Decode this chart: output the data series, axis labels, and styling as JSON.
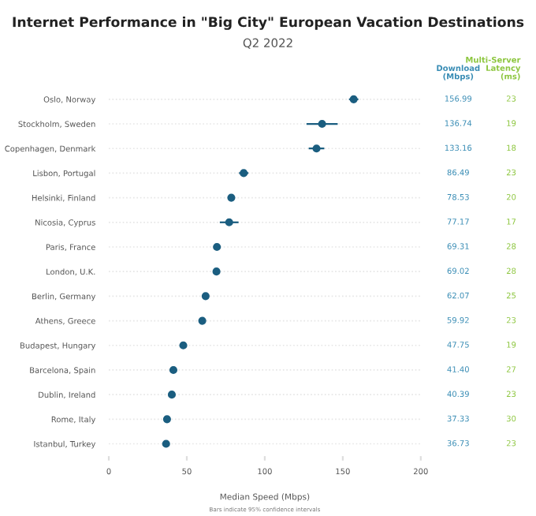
{
  "chart_data": {
    "type": "scatter",
    "orientation": "horizontal",
    "title": "Internet Performance in \"Big City\" European Vacation Destinations",
    "subtitle": "Q2 2022",
    "xlabel": "Median Speed (Mbps)",
    "categories": [
      "Oslo, Norway",
      "Stockholm, Sweden",
      "Copenhagen, Denmark",
      "Lisbon, Portugal",
      "Helsinki, Finland",
      "Nicosia, Cyprus",
      "Paris, France",
      "London, U.K.",
      "Berlin, Germany",
      "Athens, Greece",
      "Budapest, Hungary",
      "Barcelona, Spain",
      "Dublin, Ireland",
      "Rome, Italy",
      "Istanbul, Turkey"
    ],
    "series": [
      {
        "color": "#1b5e80",
        "values": [
          156.99,
          136.74,
          133.16,
          86.49,
          78.53,
          77.17,
          69.31,
          69.02,
          62.07,
          59.92,
          47.75,
          41.4,
          40.39,
          37.33,
          36.73
        ],
        "errors": [
          3,
          10,
          5,
          3,
          null,
          6,
          null,
          null,
          null,
          null,
          null,
          null,
          null,
          null,
          null
        ],
        "value_labels": [
          "156.99",
          "136.74",
          "133.16",
          "86.49",
          "78.53",
          "77.17",
          "69.31",
          "69.02",
          "62.07",
          "59.92",
          "47.75",
          "41.40",
          "40.39",
          "37.33",
          "36.73"
        ]
      }
    ],
    "xlim": [
      0,
      200
    ],
    "xticks": [
      0,
      50,
      100,
      150,
      200
    ],
    "grid": "y",
    "marker": "circle",
    "annotations": [
      "Download\n(Mbps)",
      "Multi-Server\nLatency\n(ms)",
      "Bars indicate 95% confidence intervals",
      "23",
      "19",
      "18",
      "23",
      "20",
      "17",
      "28",
      "28",
      "25",
      "23",
      "19",
      "27",
      "23",
      "30",
      "23"
    ]
  }
}
